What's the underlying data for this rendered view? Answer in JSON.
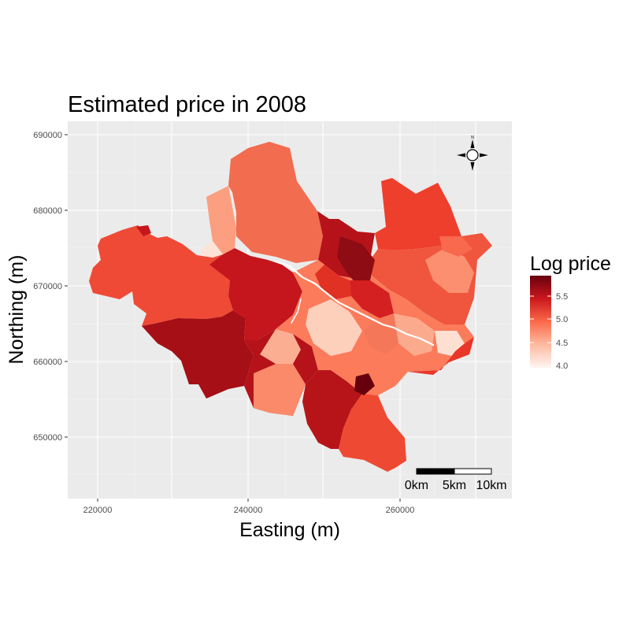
{
  "title": "Estimated price in 2008",
  "x_axis": {
    "label": "Easting (m)",
    "ticks": [
      "220000",
      "240000",
      "260000"
    ],
    "tick_values": [
      220000,
      240000,
      260000
    ]
  },
  "y_axis": {
    "label": "Northing (m)",
    "ticks": [
      "690000",
      "680000",
      "670000",
      "660000",
      "650000"
    ],
    "tick_values": [
      690000,
      680000,
      670000,
      660000,
      650000
    ]
  },
  "legend": {
    "title": "Log price",
    "ticks": [
      "5.5",
      "5.0",
      "4.5",
      "4.0"
    ],
    "tick_values": [
      5.5,
      5.0,
      4.5,
      4.0
    ],
    "range": [
      4.0,
      5.75
    ],
    "color_low": "#fff5f0",
    "color_high": "#67000d",
    "placement": "right"
  },
  "scalebar": {
    "labels": [
      "0km",
      "5km",
      "10km"
    ]
  },
  "north_arrow": {
    "icon": "compass-rose-icon",
    "letter": "N"
  },
  "map": {
    "panel_background": "#ebebeb",
    "xlim": [
      216000,
      274500
    ],
    "ylim": [
      643000,
      691500
    ]
  }
}
